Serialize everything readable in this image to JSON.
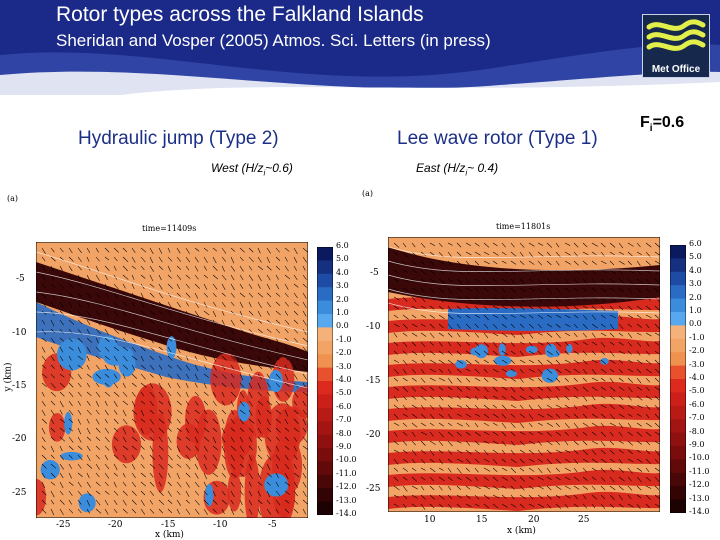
{
  "header": {
    "title": "Rotor types across the Falkland Islands",
    "subtitle": "Sheridan and Vosper (2005) Atmos. Sci. Letters (in press)",
    "logo_text": "Met Office",
    "banner_color": "#1b2a88"
  },
  "froude": {
    "main": "F",
    "sub": "i",
    "value": "=0.6"
  },
  "panels": [
    {
      "heading": "Hydraulic jump (Type 2)",
      "direction": "West (H/z",
      "direction_sub": "i",
      "direction_ratio": "~0.6)",
      "letter": "(a)",
      "time": "time=11409s",
      "xlabel": "x (km)",
      "ylabel": "y (km)",
      "xticks": [
        "-25",
        "-20",
        "-15",
        "-10",
        "-5"
      ],
      "yticks": [
        "-5",
        "-10",
        "-15",
        "-20",
        "-25"
      ]
    },
    {
      "heading": "Lee wave rotor (Type 1)",
      "direction": "East (H/z",
      "direction_sub": "i",
      "direction_ratio": "~ 0.4)",
      "letter": "(a)",
      "time": "time=11801s",
      "xlabel": "x (km)",
      "ylabel": "",
      "xticks": [
        "10",
        "15",
        "20",
        "25"
      ],
      "yticks": [
        "-5",
        "-10",
        "-15",
        "-20",
        "-25"
      ]
    }
  ],
  "colorbar": {
    "labels": [
      "6.0",
      "5.0",
      "4.0",
      "3.0",
      "2.0",
      "1.0",
      "0.0",
      "-1.0",
      "-2.0",
      "-3.0",
      "-4.0",
      "-5.0",
      "-6.0",
      "-7.0",
      "-8.0",
      "-9.0",
      "-10.0",
      "-11.0",
      "-12.0",
      "-13.0",
      "-14.0"
    ],
    "colors": [
      "#0b1a5e",
      "#14307f",
      "#1e4ba3",
      "#2a6cc4",
      "#3b8ddc",
      "#57a8ee",
      "#f4b27a",
      "#f2a366",
      "#ef9250",
      "#e9502d",
      "#dd2a1f",
      "#cc1f19",
      "#b81a16",
      "#a31512",
      "#8e110f",
      "#780d0c",
      "#620a09",
      "#4a0707",
      "#330404",
      "#1c0202"
    ]
  }
}
